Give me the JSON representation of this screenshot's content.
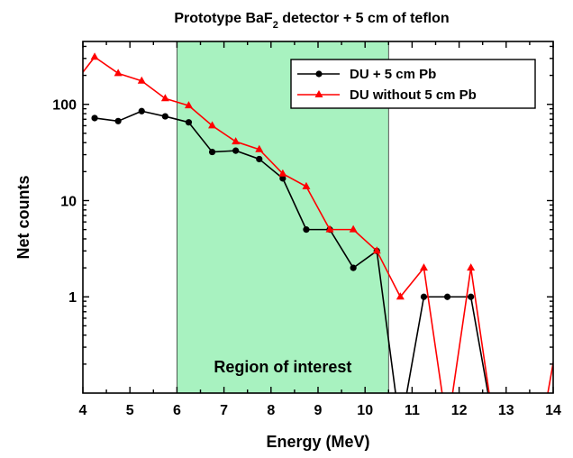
{
  "chart_data": {
    "type": "line",
    "title": "Prototype BaF",
    "title_sub": "2",
    "title_rest": " detector + 5 cm of teflon",
    "xlabel": "Energy (MeV)",
    "ylabel": "Net counts",
    "xlim": [
      4,
      14
    ],
    "ylim": [
      0.1,
      450
    ],
    "yscale": "log",
    "x_ticks": [
      4,
      5,
      6,
      7,
      8,
      9,
      10,
      11,
      12,
      13,
      14
    ],
    "y_ticks": [
      {
        "value": 1,
        "label": "1"
      },
      {
        "value": 10,
        "label": "10"
      },
      {
        "value": 100,
        "label": "100"
      }
    ],
    "legend_position": "top-right",
    "region": {
      "x0": 6.0,
      "x1": 10.5,
      "label": "Region of interest",
      "color": "#a8f2c0"
    },
    "series": [
      {
        "name": "DU + 5 cm Pb",
        "color": "#000000",
        "marker": "circle",
        "x": [
          4.25,
          4.75,
          5.25,
          5.75,
          6.25,
          6.75,
          7.25,
          7.75,
          8.25,
          8.75,
          9.25,
          9.75,
          10.25,
          10.75,
          11.25,
          11.75,
          12.25,
          12.75,
          13.25,
          13.75
        ],
        "y": [
          72,
          67,
          85,
          75,
          65,
          32,
          33,
          27,
          17,
          5,
          5,
          2,
          3,
          0,
          1,
          1,
          1,
          0,
          0,
          0
        ]
      },
      {
        "name": "DU without 5 cm Pb",
        "color": "#ff0000",
        "marker": "triangle",
        "x": [
          3.75,
          4.25,
          4.75,
          5.25,
          5.75,
          6.25,
          6.75,
          7.25,
          7.75,
          8.25,
          8.75,
          9.25,
          9.75,
          10.25,
          10.75,
          11.25,
          11.75,
          12.25,
          12.75,
          13.25,
          13.75,
          14.25
        ],
        "y": [
          150,
          310,
          210,
          175,
          115,
          97,
          60,
          41,
          34,
          19,
          14,
          5,
          5,
          3,
          1,
          2,
          0,
          2,
          0,
          0,
          0,
          1
        ]
      }
    ]
  }
}
